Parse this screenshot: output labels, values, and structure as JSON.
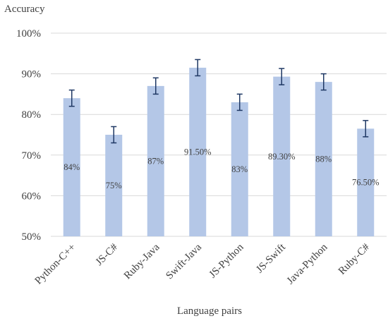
{
  "chart_data": {
    "type": "bar",
    "ylabel": "Accuracy",
    "xlabel": "Language pairs",
    "categories": [
      "Python-C++",
      "JS-C#",
      "Ruby-Java",
      "Swift-Java",
      "JS-Python",
      "JS-Swift",
      "Java-Python",
      "Ruby-C#"
    ],
    "values": [
      84,
      75,
      87,
      91.5,
      83,
      89.3,
      88,
      76.5
    ],
    "data_labels": [
      "84%",
      "75%",
      "87%",
      "91.50%",
      "83%",
      "89.30%",
      "88%",
      "76.50%"
    ],
    "error_bars": [
      2.0,
      2.0,
      2.0,
      2.0,
      2.0,
      2.0,
      2.0,
      2.0
    ],
    "ylim": [
      50,
      100
    ],
    "yticks": [
      50,
      60,
      70,
      80,
      90,
      100
    ],
    "ytick_labels": [
      "50%",
      "60%",
      "70%",
      "80%",
      "90%",
      "100%"
    ],
    "grid": true,
    "bar_color": "#b4c7e7",
    "error_color": "#1f3864",
    "grid_color": "#d9d9d9"
  }
}
